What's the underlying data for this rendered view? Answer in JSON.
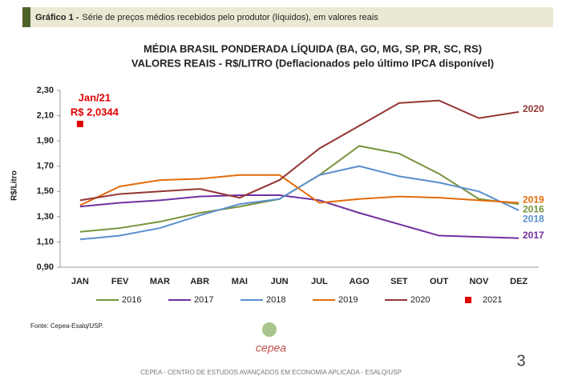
{
  "header": {
    "label": "Gráfico 1 -",
    "text": "Série de preços médios recebidos pelo produtor (líquidos), em valores reais"
  },
  "chart_data": {
    "type": "line",
    "title": "MÉDIA BRASIL PONDERADA LÍQUIDA (BA, GO, MG, SP, PR, SC, RS)",
    "subtitle": "VALORES REAIS - R$/LITRO (Deflacionados pelo último IPCA disponível)",
    "y_label": "R$/Litro",
    "annotation": "Jan/21",
    "categories": [
      "JAN",
      "FEV",
      "MAR",
      "ABR",
      "MAI",
      "JUN",
      "JUL",
      "AGO",
      "SET",
      "OUT",
      "NOV",
      "DEZ"
    ],
    "ylim": [
      0.9,
      2.3
    ],
    "yticks": [
      {
        "value": 0.9,
        "label": "0,90"
      },
      {
        "value": 1.1,
        "label": "1,10"
      },
      {
        "value": 1.3,
        "label": "1,30"
      },
      {
        "value": 1.5,
        "label": "1,50"
      },
      {
        "value": 1.7,
        "label": "1,70"
      },
      {
        "value": 1.9,
        "label": "1,90"
      },
      {
        "value": 2.1,
        "label": "2,10"
      },
      {
        "value": 2.3,
        "label": "2,30"
      }
    ],
    "grid": false,
    "series": [
      {
        "name": "2016",
        "color": "#77933c",
        "end_label": true,
        "values": [
          1.18,
          1.21,
          1.26,
          1.33,
          1.38,
          1.44,
          1.63,
          1.86,
          1.8,
          1.64,
          1.44,
          1.4
        ]
      },
      {
        "name": "2017",
        "color": "#7030a0",
        "end_label": true,
        "values": [
          1.38,
          1.41,
          1.43,
          1.46,
          1.47,
          1.47,
          1.43,
          1.33,
          1.24,
          1.15,
          1.14,
          1.13
        ]
      },
      {
        "name": "2018",
        "color": "#5b8fce",
        "end_label": true,
        "values": [
          1.12,
          1.15,
          1.21,
          1.31,
          1.4,
          1.44,
          1.63,
          1.7,
          1.62,
          1.57,
          1.5,
          1.35
        ]
      },
      {
        "name": "2019",
        "color": "#e46c0a",
        "end_label": true,
        "values": [
          1.39,
          1.54,
          1.59,
          1.6,
          1.63,
          1.63,
          1.41,
          1.44,
          1.46,
          1.45,
          1.43,
          1.41
        ]
      },
      {
        "name": "2020",
        "color": "#943634",
        "end_label": true,
        "values": [
          1.43,
          1.48,
          1.5,
          1.52,
          1.45,
          1.59,
          1.84,
          2.02,
          2.2,
          2.22,
          2.08,
          2.13
        ]
      },
      {
        "name": "2021",
        "color": "#e00000",
        "marker": "square",
        "end_label": false,
        "values": [
          2.0344,
          null,
          null,
          null,
          null,
          null,
          null,
          null,
          null,
          null,
          null,
          null
        ],
        "value_labels": [
          "R$ 2,0344",
          null,
          null,
          null,
          null,
          null,
          null,
          null,
          null,
          null,
          null,
          null
        ]
      }
    ]
  },
  "source": "Fonte: Cepea-Esalq/USP.",
  "logo": "cepea",
  "page_number": "3",
  "footer": "CEPEA - CENTRO DE ESTUDOS AVANÇADOS EM ECONOMIA APLICADA - ESALQ/USP"
}
